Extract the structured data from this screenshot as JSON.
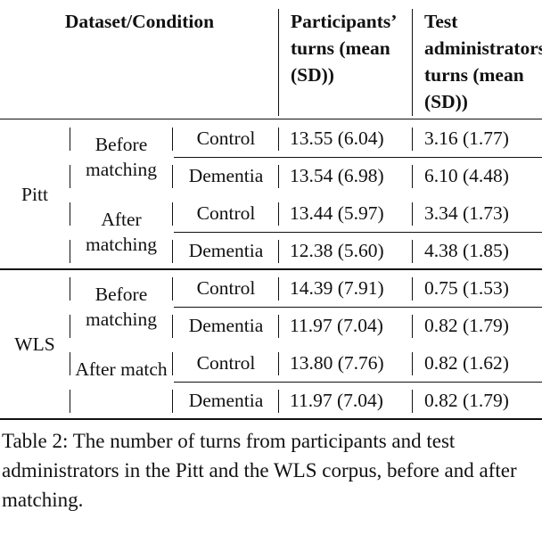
{
  "table": {
    "header": [
      "Dataset/Condition",
      "Participants’ turns (mean (SD))",
      "Test administrators’ turns (mean (SD))"
    ],
    "groups": [
      {
        "dataset": "Pitt",
        "subgroups": [
          {
            "label": "Before matching",
            "rows": [
              [
                "Control",
                "13.55 (6.04)",
                "3.16 (1.77)"
              ],
              [
                "Dementia",
                "13.54 (6.98)",
                "6.10 (4.48)"
              ]
            ]
          },
          {
            "label": "After matching",
            "rows": [
              [
                "Control",
                "13.44 (5.97)",
                "3.34 (1.73)"
              ],
              [
                "Dementia",
                "12.38 (5.60)",
                "4.38 (1.85)"
              ]
            ]
          }
        ]
      },
      {
        "dataset": "WLS",
        "subgroups": [
          {
            "label": "Before matching",
            "rows": [
              [
                "Control",
                "14.39 (7.91)",
                "0.75 (1.53)"
              ],
              [
                "Dementia",
                "11.97 (7.04)",
                "0.82 (1.79)"
              ]
            ]
          },
          {
            "label": "After match",
            "rows": [
              [
                "Control",
                "13.80 (7.76)",
                "0.82 (1.62)"
              ],
              [
                "Dementia",
                "11.97 (7.04)",
                "0.82 (1.79)"
              ]
            ]
          }
        ]
      }
    ]
  },
  "caption": "Table 2: The number of turns from participants and test administrators in the Pitt and the WLS corpus, before and after matching."
}
